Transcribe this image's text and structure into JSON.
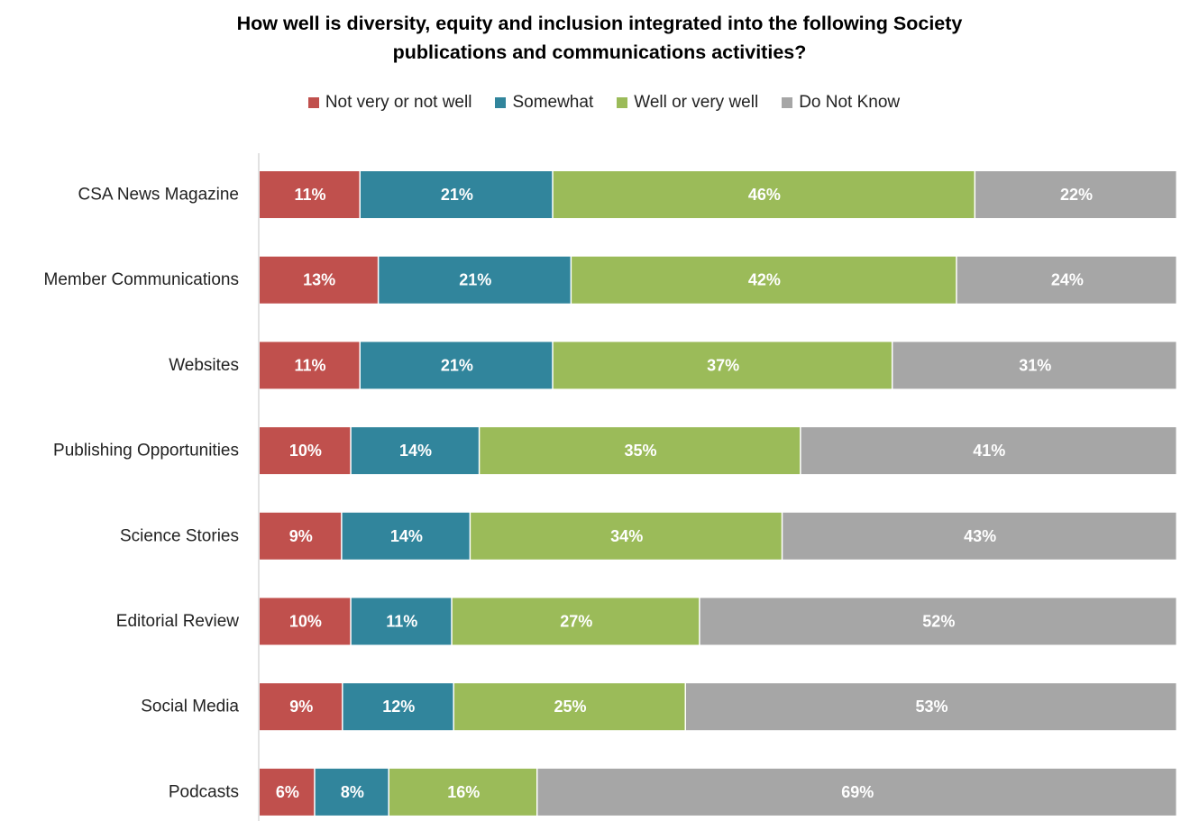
{
  "colors": {
    "not_well": "#c0504d",
    "somewhat": "#31859c",
    "well": "#9bbb59",
    "dont_know": "#a6a6a6"
  },
  "chart_data": {
    "type": "bar",
    "orientation": "horizontal",
    "stacked": true,
    "percent_stacked": true,
    "title_line1": "How well is diversity, equity and inclusion integrated into the following Society",
    "title_line2": "publications and communications activities?",
    "legend_placement": "top",
    "categories": [
      "CSA News Magazine",
      "Member Communications",
      "Websites",
      "Publishing Opportunities",
      "Science Stories",
      "Editorial Review",
      "Social Media",
      "Podcasts"
    ],
    "series": [
      {
        "name": "Not very or not well",
        "color_key": "not_well",
        "values": [
          11,
          13,
          11,
          10,
          9,
          10,
          9,
          6
        ]
      },
      {
        "name": "Somewhat",
        "color_key": "somewhat",
        "values": [
          21,
          21,
          21,
          14,
          14,
          11,
          12,
          8
        ]
      },
      {
        "name": "Well or very well",
        "color_key": "well",
        "values": [
          46,
          42,
          37,
          35,
          34,
          27,
          25,
          16
        ]
      },
      {
        "name": "Do Not Know",
        "color_key": "dont_know",
        "values": [
          22,
          24,
          31,
          41,
          43,
          52,
          53,
          69
        ]
      }
    ],
    "label_suffix": "%"
  }
}
